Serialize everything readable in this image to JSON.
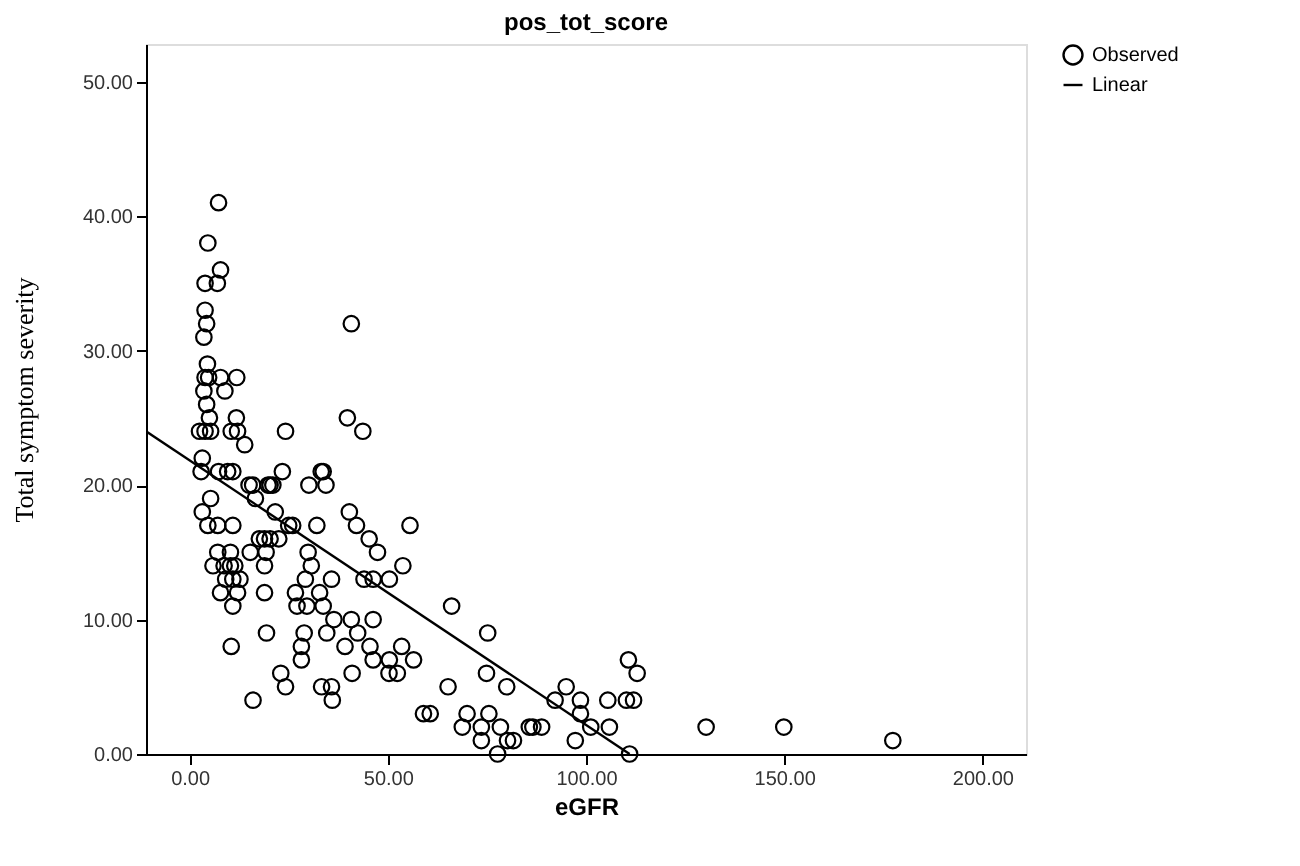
{
  "chart_data": {
    "type": "scatter",
    "title": "pos_tot_score",
    "xlabel": "eGFR",
    "ylabel": "Total symptom severity",
    "xlim": [
      -11,
      211
    ],
    "ylim": [
      0,
      52.8
    ],
    "xticks": [
      {
        "value": 0,
        "label": "0.00"
      },
      {
        "value": 50,
        "label": "50.00"
      },
      {
        "value": 100,
        "label": "100.00"
      },
      {
        "value": 150,
        "label": "150.00"
      },
      {
        "value": 200,
        "label": "200.00"
      }
    ],
    "yticks": [
      {
        "value": 0,
        "label": "0.00"
      },
      {
        "value": 10,
        "label": "10.00"
      },
      {
        "value": 20,
        "label": "20.00"
      },
      {
        "value": 30,
        "label": "30.00"
      },
      {
        "value": 40,
        "label": "40.00"
      },
      {
        "value": 50,
        "label": "50.00"
      }
    ],
    "grid": false,
    "legend": "top right",
    "series": [
      {
        "name": "Observed",
        "marker": "circle",
        "color": "#000000",
        "x": [
          7.3,
          4.6,
          7.8,
          3.9,
          7.0,
          3.9,
          4.3,
          40.8,
          3.6,
          4.5,
          3.9,
          4.8,
          7.8,
          11.9,
          3.6,
          8.9,
          4.3,
          5.0,
          11.8,
          39.8,
          2.5,
          3.9,
          5.3,
          10.5,
          12.1,
          24.2,
          43.7,
          13.9,
          3.2,
          2.9,
          7.3,
          9.6,
          10.9,
          23.4,
          33.2,
          33.7,
          15.0,
          15.9,
          19.8,
          20.3,
          21.0,
          30.1,
          34.4,
          5.3,
          16.6,
          3.2,
          21.6,
          40.3,
          4.6,
          7.1,
          10.9,
          25.0,
          26.0,
          32.1,
          42.1,
          55.6,
          17.6,
          18.9,
          20.3,
          22.5,
          45.3,
          7.1,
          10.3,
          15.3,
          19.3,
          29.9,
          47.4,
          5.9,
          8.7,
          10.3,
          11.4,
          18.9,
          30.7,
          53.8,
          9.1,
          10.9,
          12.7,
          29.2,
          35.8,
          44.0,
          46.3,
          50.4,
          7.8,
          12.1,
          18.9,
          26.7,
          32.8,
          10.9,
          27.1,
          29.6,
          33.7,
          66.1,
          36.4,
          40.8,
          46.3,
          19.4,
          28.9,
          34.6,
          42.4,
          75.2,
          10.5,
          28.2,
          39.2,
          45.5,
          53.5,
          28.2,
          46.3,
          50.4,
          56.5,
          110.7,
          23.0,
          41.0,
          50.3,
          52.4,
          74.9,
          112.9,
          24.2,
          33.3,
          35.8,
          65.2,
          80.0,
          95.0,
          16.0,
          36.0,
          92.2,
          98.6,
          105.5,
          110.2,
          112.0,
          59.0,
          60.7,
          70.0,
          75.5,
          98.6,
          68.8,
          73.6,
          78.4,
          85.7,
          86.6,
          88.8,
          101.2,
          105.9,
          130.3,
          149.9,
          73.6,
          80.2,
          81.7,
          97.3,
          177.4,
          77.7,
          111.0
        ],
        "values": [
          41,
          38,
          36,
          35,
          35,
          33,
          32,
          32,
          31,
          29,
          28,
          28,
          28,
          28,
          27,
          27,
          26,
          25,
          25,
          25,
          24,
          24,
          24,
          24,
          24,
          24,
          24,
          23,
          22,
          21,
          21,
          21,
          21,
          21,
          21,
          21,
          20,
          20,
          20,
          20,
          20,
          20,
          20,
          19,
          19,
          18,
          18,
          18,
          17,
          17,
          17,
          17,
          17,
          17,
          17,
          17,
          16,
          16,
          16,
          16,
          16,
          15,
          15,
          15,
          15,
          15,
          15,
          14,
          14,
          14,
          14,
          14,
          14,
          14,
          13,
          13,
          13,
          13,
          13,
          13,
          13,
          13,
          12,
          12,
          12,
          12,
          12,
          11,
          11,
          11,
          11,
          11,
          10,
          10,
          10,
          9,
          9,
          9,
          9,
          9,
          8,
          8,
          8,
          8,
          8,
          7,
          7,
          7,
          7,
          7,
          6,
          6,
          6,
          6,
          6,
          6,
          5,
          5,
          5,
          5,
          5,
          5,
          4,
          4,
          4,
          4,
          4,
          4,
          4,
          3,
          3,
          3,
          3,
          3,
          2,
          2,
          2,
          2,
          2,
          2,
          2,
          2,
          2,
          2,
          1,
          1,
          1,
          1,
          1,
          0,
          0
        ]
      },
      {
        "name": "Linear",
        "type": "line",
        "line_style": "solid",
        "color": "#000000",
        "x": [
          -11,
          111
        ],
        "values": [
          24.0,
          0.0
        ]
      }
    ]
  }
}
